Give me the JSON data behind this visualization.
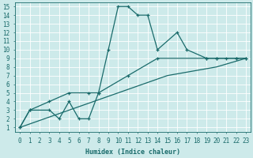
{
  "background_color": "#cdeaea",
  "grid_color": "#b8d8d8",
  "line_color": "#1a6b6b",
  "xlabel": "Humidex (Indice chaleur)",
  "xlim": [
    -0.5,
    23.5
  ],
  "ylim": [
    0.5,
    15.5
  ],
  "xticks": [
    0,
    1,
    2,
    3,
    4,
    5,
    6,
    7,
    8,
    9,
    10,
    11,
    12,
    13,
    14,
    15,
    16,
    17,
    18,
    19,
    20,
    21,
    22,
    23
  ],
  "yticks": [
    1,
    2,
    3,
    4,
    5,
    6,
    7,
    8,
    9,
    10,
    11,
    12,
    13,
    14,
    15
  ],
  "curve_peak_x": [
    0,
    1,
    3,
    4,
    5,
    6,
    7,
    8,
    9,
    10,
    11,
    12,
    13,
    14,
    16,
    17,
    19,
    20,
    21,
    22,
    23
  ],
  "curve_peak_y": [
    1,
    3,
    3,
    2,
    4,
    2,
    2,
    5,
    10,
    15,
    15,
    14,
    14,
    10,
    12,
    10,
    9,
    9,
    9,
    9,
    9
  ],
  "curve_upper_x": [
    0,
    1,
    3,
    5,
    7,
    8,
    11,
    14,
    19,
    20,
    22,
    23
  ],
  "curve_upper_y": [
    1,
    3,
    4,
    5,
    5,
    5,
    7,
    9,
    9,
    9,
    9,
    9
  ],
  "curve_lower_x": [
    0,
    5,
    10,
    15,
    20,
    23
  ],
  "curve_lower_y": [
    1,
    3,
    5,
    7,
    8,
    9
  ]
}
